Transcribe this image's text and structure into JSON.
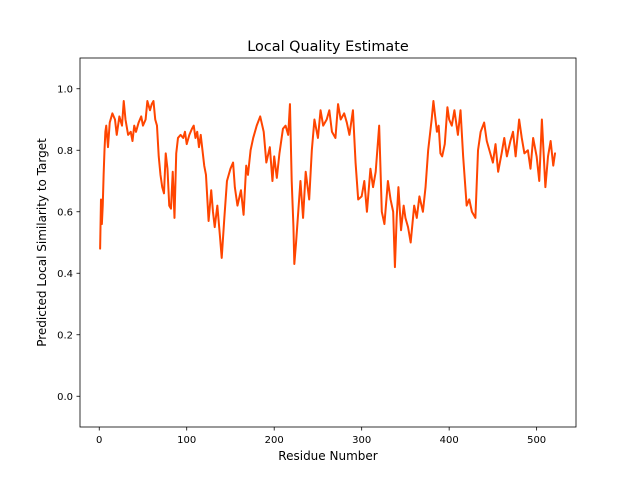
{
  "chart_data": {
    "type": "line",
    "title": "Local Quality Estimate",
    "xlabel": "Residue Number",
    "ylabel": "Predicted Local Similarity to Target",
    "xlim": [
      -22,
      545
    ],
    "ylim": [
      -0.1,
      1.1
    ],
    "xticks": [
      0,
      100,
      200,
      300,
      400,
      500
    ],
    "xtick_labels": [
      "0",
      "100",
      "200",
      "300",
      "400",
      "500"
    ],
    "yticks": [
      0.0,
      0.2,
      0.4,
      0.6,
      0.8,
      1.0
    ],
    "ytick_labels": [
      "0.0",
      "0.2",
      "0.4",
      "0.6",
      "0.8",
      "1.0"
    ],
    "grid": false,
    "series": [
      {
        "color": "#ff4500",
        "x": [
          1,
          2,
          3,
          4,
          5,
          6,
          7,
          8,
          10,
          12,
          15,
          18,
          20,
          23,
          26,
          28,
          30,
          33,
          36,
          38,
          40,
          42,
          45,
          48,
          50,
          53,
          55,
          58,
          60,
          62,
          64,
          66,
          68,
          70,
          72,
          74,
          76,
          78,
          80,
          82,
          84,
          86,
          88,
          90,
          93,
          96,
          98,
          100,
          103,
          106,
          108,
          110,
          112,
          114,
          116,
          118,
          120,
          122,
          125,
          128,
          130,
          132,
          135,
          138,
          140,
          143,
          146,
          150,
          153,
          155,
          158,
          162,
          165,
          168,
          170,
          173,
          176,
          180,
          184,
          188,
          191,
          195,
          198,
          200,
          203,
          206,
          210,
          213,
          216,
          218,
          220,
          222,
          223,
          225,
          228,
          230,
          233,
          236,
          240,
          243,
          246,
          250,
          253,
          256,
          260,
          263,
          266,
          270,
          273,
          276,
          280,
          283,
          286,
          290,
          293,
          296,
          300,
          303,
          306,
          310,
          313,
          316,
          320,
          323,
          326,
          330,
          333,
          336,
          338,
          340,
          342,
          345,
          348,
          350,
          353,
          356,
          360,
          363,
          366,
          370,
          373,
          376,
          380,
          382,
          384,
          386,
          388,
          390,
          392,
          395,
          398,
          400,
          403,
          406,
          410,
          413,
          416,
          420,
          423,
          426,
          430,
          433,
          436,
          440,
          443,
          446,
          450,
          453,
          456,
          460,
          463,
          466,
          470,
          473,
          476,
          480,
          483,
          486,
          490,
          493,
          496,
          500,
          503,
          506,
          510,
          513,
          516,
          519,
          521
        ],
        "y": [
          0.48,
          0.64,
          0.56,
          0.62,
          0.72,
          0.8,
          0.86,
          0.88,
          0.81,
          0.89,
          0.92,
          0.9,
          0.85,
          0.91,
          0.88,
          0.96,
          0.9,
          0.85,
          0.86,
          0.83,
          0.88,
          0.86,
          0.89,
          0.91,
          0.88,
          0.9,
          0.96,
          0.93,
          0.95,
          0.96,
          0.9,
          0.88,
          0.78,
          0.72,
          0.68,
          0.66,
          0.79,
          0.74,
          0.62,
          0.61,
          0.73,
          0.58,
          0.79,
          0.84,
          0.85,
          0.84,
          0.86,
          0.82,
          0.85,
          0.87,
          0.88,
          0.84,
          0.86,
          0.81,
          0.85,
          0.8,
          0.75,
          0.72,
          0.57,
          0.67,
          0.6,
          0.55,
          0.62,
          0.52,
          0.45,
          0.58,
          0.7,
          0.74,
          0.76,
          0.68,
          0.62,
          0.67,
          0.59,
          0.75,
          0.72,
          0.8,
          0.84,
          0.88,
          0.91,
          0.86,
          0.76,
          0.81,
          0.7,
          0.78,
          0.71,
          0.79,
          0.87,
          0.88,
          0.85,
          0.95,
          0.7,
          0.55,
          0.43,
          0.5,
          0.62,
          0.7,
          0.58,
          0.73,
          0.64,
          0.8,
          0.9,
          0.84,
          0.93,
          0.88,
          0.9,
          0.93,
          0.86,
          0.84,
          0.95,
          0.9,
          0.92,
          0.89,
          0.85,
          0.93,
          0.76,
          0.64,
          0.65,
          0.7,
          0.6,
          0.74,
          0.68,
          0.73,
          0.88,
          0.6,
          0.56,
          0.7,
          0.64,
          0.6,
          0.42,
          0.58,
          0.68,
          0.54,
          0.62,
          0.58,
          0.55,
          0.5,
          0.62,
          0.58,
          0.65,
          0.6,
          0.68,
          0.8,
          0.9,
          0.96,
          0.91,
          0.86,
          0.88,
          0.79,
          0.78,
          0.82,
          0.94,
          0.9,
          0.88,
          0.93,
          0.85,
          0.93,
          0.78,
          0.62,
          0.64,
          0.6,
          0.58,
          0.8,
          0.86,
          0.89,
          0.83,
          0.8,
          0.76,
          0.82,
          0.73,
          0.79,
          0.84,
          0.78,
          0.83,
          0.86,
          0.78,
          0.9,
          0.84,
          0.79,
          0.8,
          0.74,
          0.84,
          0.78,
          0.7,
          0.9,
          0.68,
          0.78,
          0.83,
          0.75,
          0.79
        ]
      }
    ]
  }
}
